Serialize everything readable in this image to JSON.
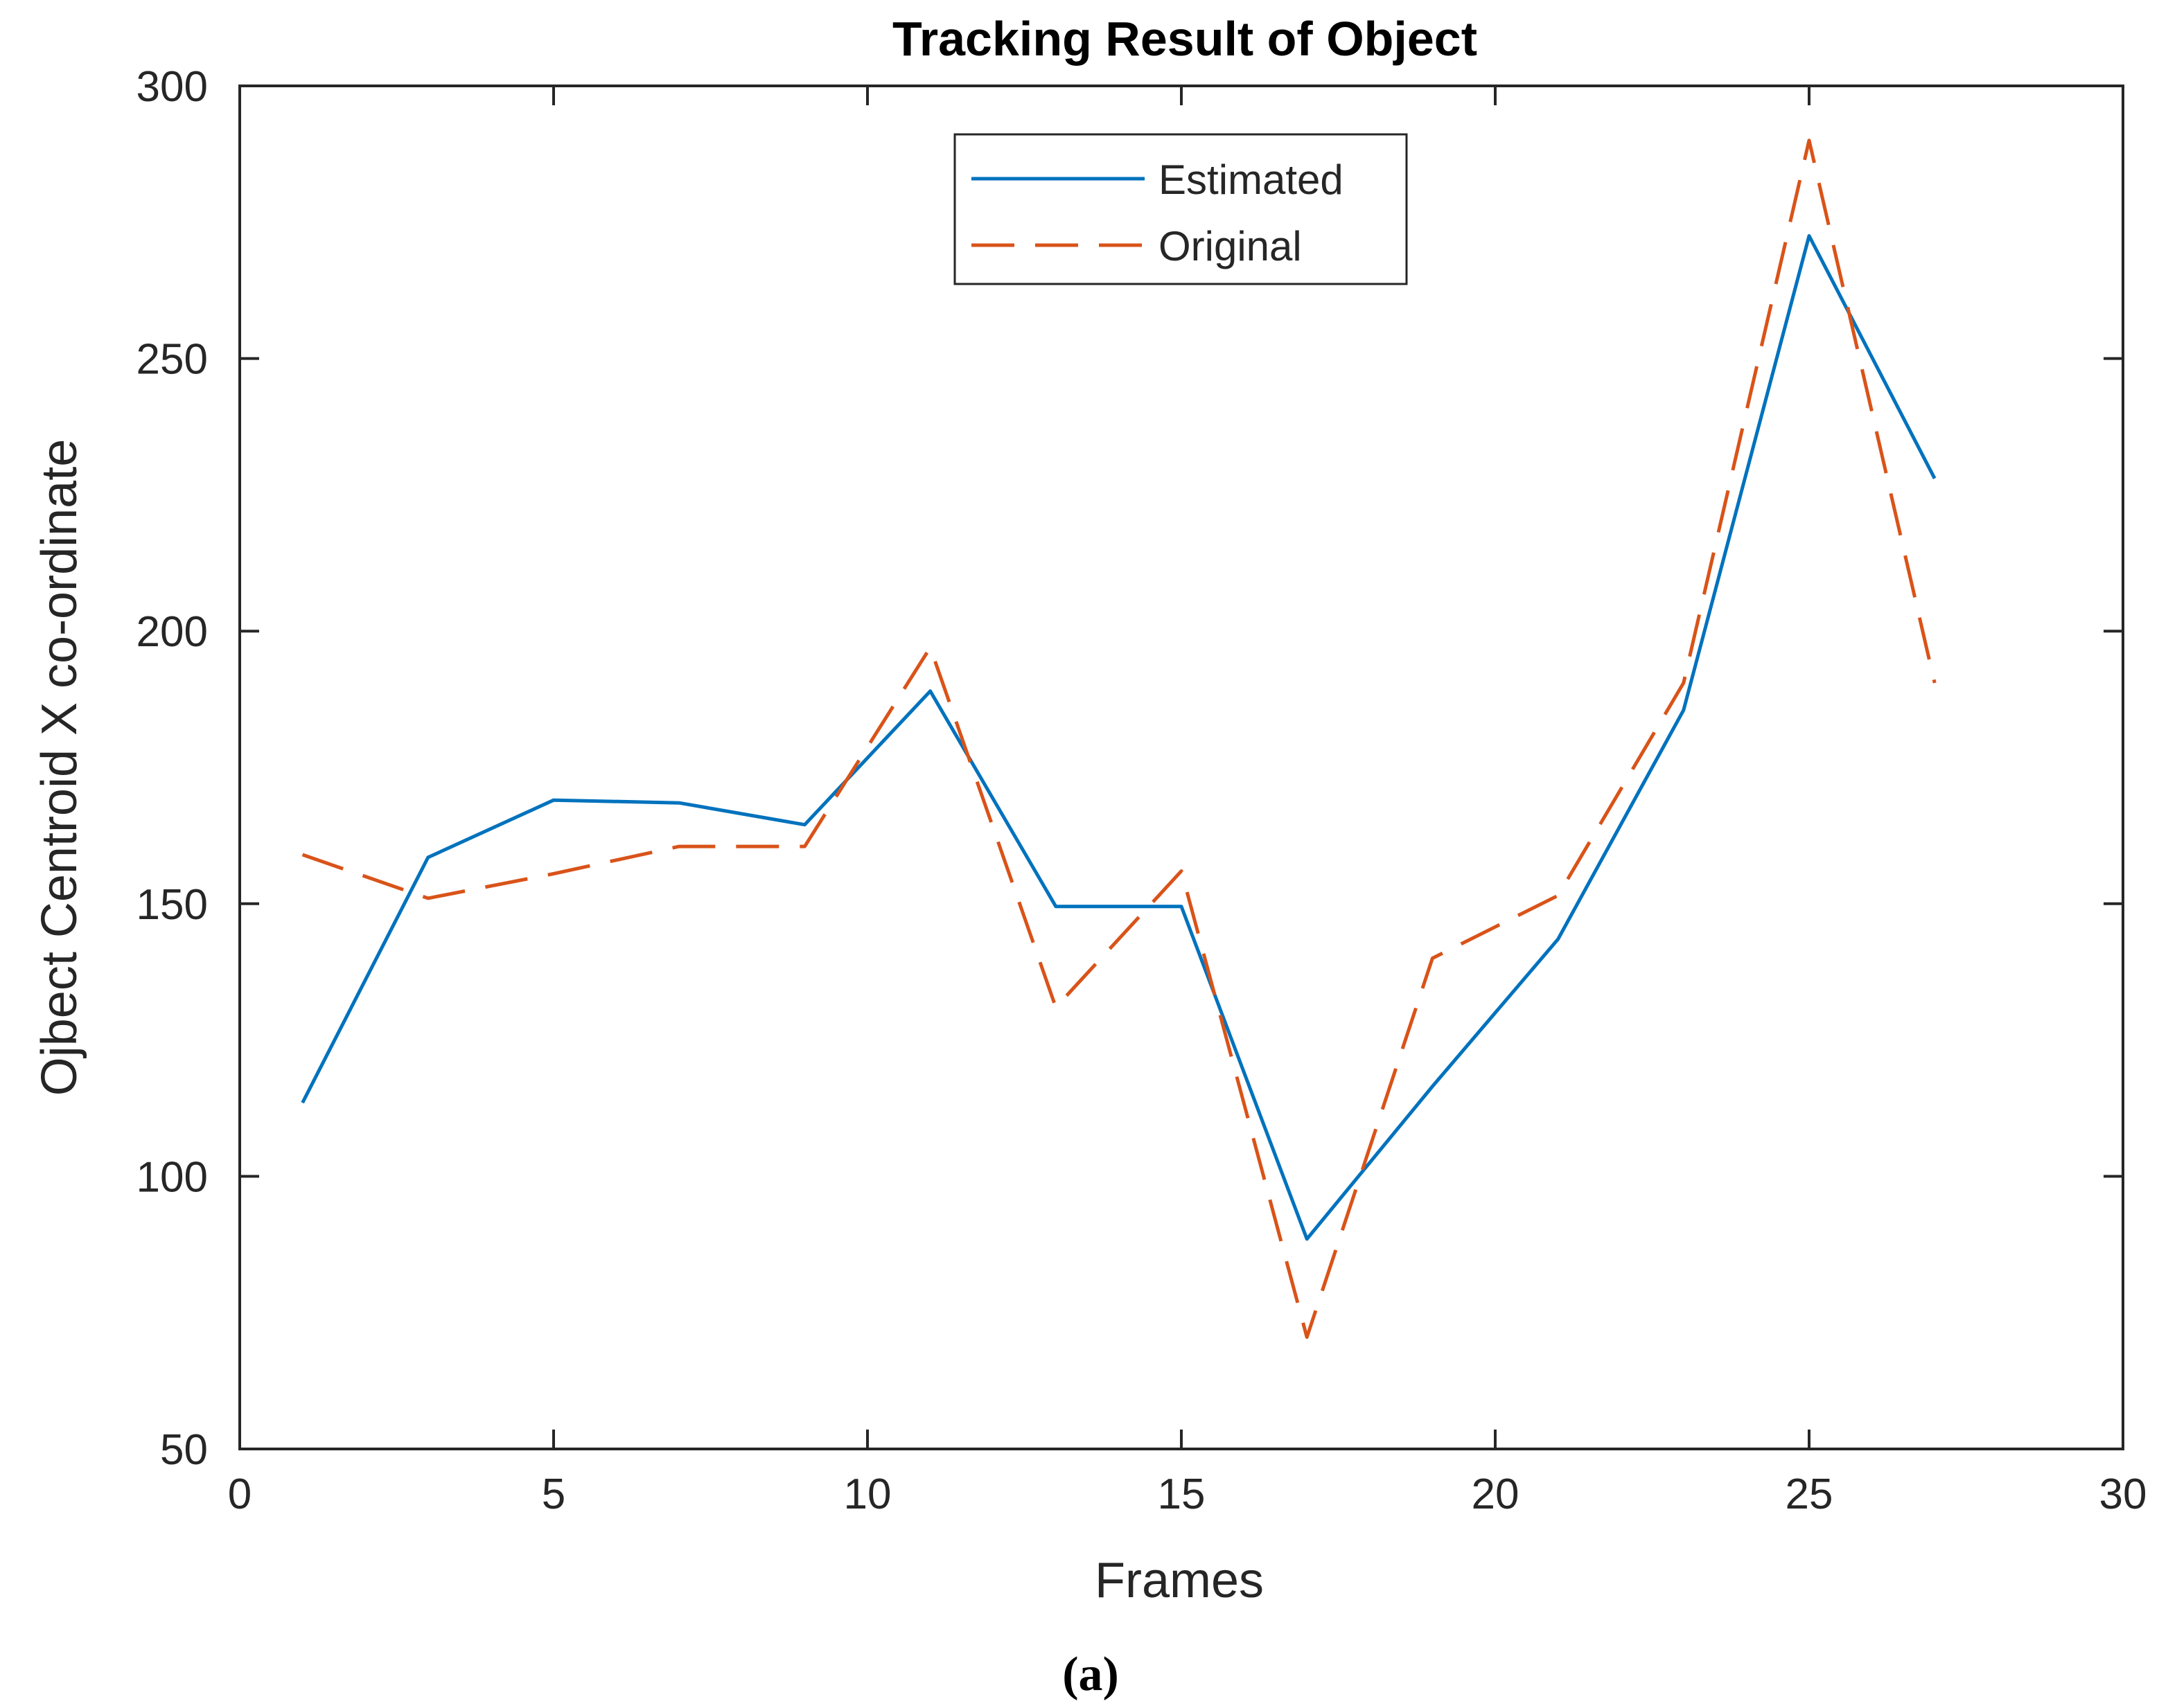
{
  "chart_data": {
    "type": "line",
    "title": "Tracking Result of Object",
    "xlabel": "Frames",
    "ylabel": "Ojbect Centroid X co-ordinate",
    "caption": "(a)",
    "xlim": [
      0,
      30
    ],
    "ylim": [
      50,
      300
    ],
    "xticks": [
      0,
      5,
      10,
      15,
      20,
      25,
      30
    ],
    "yticks": [
      50,
      100,
      150,
      200,
      250,
      300
    ],
    "grid": false,
    "legend": {
      "placement": "top-center",
      "entries": [
        "Estimated",
        "Original"
      ]
    },
    "series": [
      {
        "name": "Estimated",
        "color": "#0072BD",
        "style": "solid",
        "x": [
          1,
          3,
          5,
          7,
          9,
          11,
          13,
          15,
          17,
          19,
          21,
          23,
          25,
          27
        ],
        "y": [
          113.5,
          158.5,
          169,
          168.5,
          164.5,
          189,
          149.5,
          149.5,
          88.5,
          116.5,
          143.5,
          185.5,
          272.5,
          228
        ]
      },
      {
        "name": "Original",
        "color": "#D95319",
        "style": "dashed",
        "x": [
          1,
          3,
          5,
          7,
          9,
          11,
          13,
          15,
          17,
          19,
          21,
          23,
          25,
          27
        ],
        "y": [
          159,
          151,
          155.5,
          160.5,
          160.5,
          197,
          131,
          156,
          70.5,
          140,
          151.5,
          190.5,
          290,
          190.5
        ]
      }
    ]
  }
}
